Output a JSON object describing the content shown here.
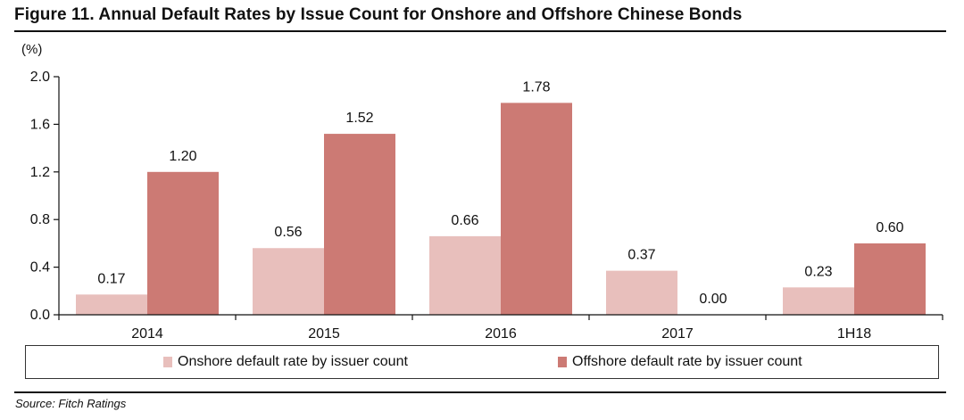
{
  "figure": {
    "title": "Figure 11. Annual Default Rates by Issue Count for Onshore and Offshore Chinese Bonds",
    "source": "Source: Fitch Ratings"
  },
  "colors": {
    "onshore": "#e8bfbc",
    "offshore": "#cc7a74",
    "axis": "#111111"
  },
  "chart_data": {
    "type": "bar",
    "title": "Figure 11. Annual Default Rates by Issue Count for Onshore and Offshore Chinese Bonds",
    "ylabel": "(%)",
    "xlabel": "",
    "ylim": [
      0,
      2.0
    ],
    "yticks": [
      "0.0",
      "0.4",
      "0.8",
      "1.2",
      "1.6",
      "2.0"
    ],
    "grid": false,
    "legend_position": "bottom",
    "categories": [
      "2014",
      "2015",
      "2016",
      "2017",
      "1H18"
    ],
    "series": [
      {
        "name": "Onshore default rate by issuer count",
        "values": [
          0.17,
          0.56,
          0.66,
          0.37,
          0.23
        ],
        "labels": [
          "0.17",
          "0.56",
          "0.66",
          "0.37",
          "0.23"
        ]
      },
      {
        "name": "Offshore default rate by issuer count",
        "values": [
          1.2,
          1.52,
          1.78,
          0.0,
          0.6
        ],
        "labels": [
          "1.20",
          "1.52",
          "1.78",
          "0.00",
          "0.60"
        ]
      }
    ]
  }
}
